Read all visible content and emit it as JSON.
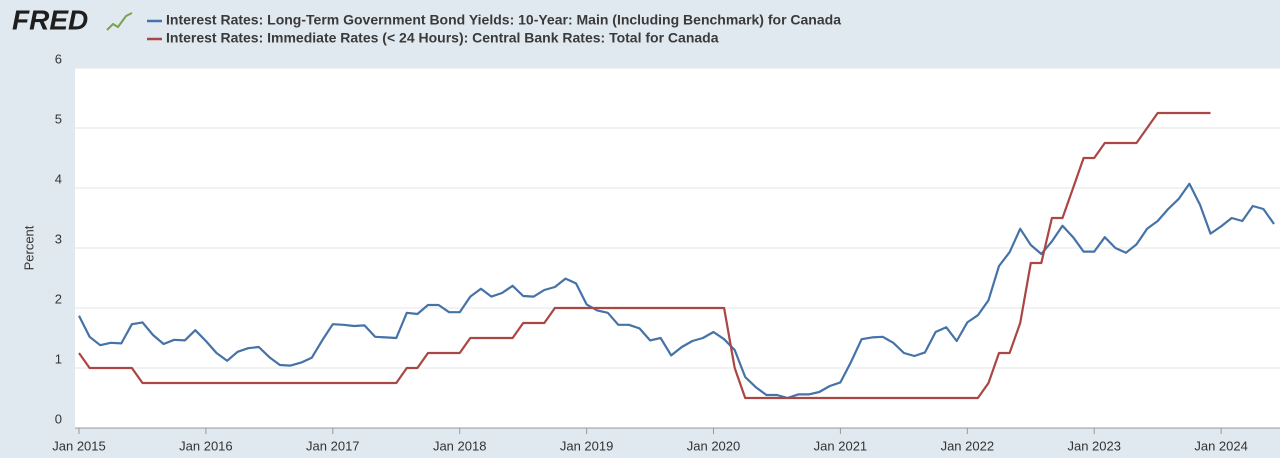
{
  "brand": "FRED",
  "chart_data": {
    "type": "line",
    "ylabel": "Percent",
    "x": [
      "2015-01",
      "2015-02",
      "2015-03",
      "2015-04",
      "2015-05",
      "2015-06",
      "2015-07",
      "2015-08",
      "2015-09",
      "2015-10",
      "2015-11",
      "2015-12",
      "2016-01",
      "2016-02",
      "2016-03",
      "2016-04",
      "2016-05",
      "2016-06",
      "2016-07",
      "2016-08",
      "2016-09",
      "2016-10",
      "2016-11",
      "2016-12",
      "2017-01",
      "2017-02",
      "2017-03",
      "2017-04",
      "2017-05",
      "2017-06",
      "2017-07",
      "2017-08",
      "2017-09",
      "2017-10",
      "2017-11",
      "2017-12",
      "2018-01",
      "2018-02",
      "2018-03",
      "2018-04",
      "2018-05",
      "2018-06",
      "2018-07",
      "2018-08",
      "2018-09",
      "2018-10",
      "2018-11",
      "2018-12",
      "2019-01",
      "2019-02",
      "2019-03",
      "2019-04",
      "2019-05",
      "2019-06",
      "2019-07",
      "2019-08",
      "2019-09",
      "2019-10",
      "2019-11",
      "2019-12",
      "2020-01",
      "2020-02",
      "2020-03",
      "2020-04",
      "2020-05",
      "2020-06",
      "2020-07",
      "2020-08",
      "2020-09",
      "2020-10",
      "2020-11",
      "2020-12",
      "2021-01",
      "2021-02",
      "2021-03",
      "2021-04",
      "2021-05",
      "2021-06",
      "2021-07",
      "2021-08",
      "2021-09",
      "2021-10",
      "2021-11",
      "2021-12",
      "2022-01",
      "2022-02",
      "2022-03",
      "2022-04",
      "2022-05",
      "2022-06",
      "2022-07",
      "2022-08",
      "2022-09",
      "2022-10",
      "2022-11",
      "2022-12",
      "2023-01",
      "2023-02",
      "2023-03",
      "2023-04",
      "2023-05",
      "2023-06",
      "2023-07",
      "2023-08",
      "2023-09",
      "2023-10",
      "2023-11",
      "2023-12",
      "2024-01",
      "2024-02",
      "2024-03",
      "2024-04",
      "2024-05",
      "2024-06"
    ],
    "series": [
      {
        "name": "Interest Rates: Long-Term Government Bond Yields: 10-Year: Main (Including Benchmark) for Canada",
        "color": "#4572a7",
        "values": [
          1.87,
          1.52,
          1.38,
          1.42,
          1.41,
          1.73,
          1.76,
          1.55,
          1.4,
          1.47,
          1.46,
          1.63,
          1.45,
          1.25,
          1.12,
          1.27,
          1.33,
          1.35,
          1.18,
          1.05,
          1.04,
          1.09,
          1.17,
          1.46,
          1.73,
          1.72,
          1.7,
          1.71,
          1.52,
          1.51,
          1.5,
          1.92,
          1.9,
          2.05,
          2.05,
          1.93,
          1.93,
          2.19,
          2.32,
          2.19,
          2.25,
          2.37,
          2.2,
          2.19,
          2.3,
          2.35,
          2.49,
          2.41,
          2.06,
          1.96,
          1.92,
          1.72,
          1.72,
          1.66,
          1.46,
          1.5,
          1.21,
          1.35,
          1.45,
          1.5,
          1.6,
          1.48,
          1.3,
          0.85,
          0.68,
          0.55,
          0.55,
          0.5,
          0.56,
          0.56,
          0.6,
          0.7,
          0.76,
          1.1,
          1.48,
          1.51,
          1.52,
          1.42,
          1.25,
          1.2,
          1.26,
          1.6,
          1.68,
          1.45,
          1.76,
          1.88,
          2.13,
          2.7,
          2.93,
          3.32,
          3.05,
          2.9,
          3.11,
          3.37,
          3.18,
          2.94,
          2.94,
          3.18,
          3.0,
          2.92,
          3.06,
          3.32,
          3.45,
          3.65,
          3.82,
          4.07,
          3.72,
          3.24,
          3.36,
          3.5,
          3.45,
          3.7,
          3.65,
          3.4
        ]
      },
      {
        "name": "Interest Rates: Immediate Rates (< 24 Hours): Central Bank Rates: Total for Canada",
        "color": "#aa4643",
        "values": [
          1.25,
          1.0,
          1.0,
          1.0,
          1.0,
          1.0,
          0.75,
          0.75,
          0.75,
          0.75,
          0.75,
          0.75,
          0.75,
          0.75,
          0.75,
          0.75,
          0.75,
          0.75,
          0.75,
          0.75,
          0.75,
          0.75,
          0.75,
          0.75,
          0.75,
          0.75,
          0.75,
          0.75,
          0.75,
          0.75,
          0.75,
          1.0,
          1.0,
          1.25,
          1.25,
          1.25,
          1.25,
          1.5,
          1.5,
          1.5,
          1.5,
          1.5,
          1.75,
          1.75,
          1.75,
          2.0,
          2.0,
          2.0,
          2.0,
          2.0,
          2.0,
          2.0,
          2.0,
          2.0,
          2.0,
          2.0,
          2.0,
          2.0,
          2.0,
          2.0,
          2.0,
          2.0,
          1.0,
          0.5,
          0.5,
          0.5,
          0.5,
          0.5,
          0.5,
          0.5,
          0.5,
          0.5,
          0.5,
          0.5,
          0.5,
          0.5,
          0.5,
          0.5,
          0.5,
          0.5,
          0.5,
          0.5,
          0.5,
          0.5,
          0.5,
          0.5,
          0.75,
          1.25,
          1.25,
          1.75,
          2.75,
          2.75,
          3.5,
          3.5,
          4.0,
          4.5,
          4.5,
          4.75,
          4.75,
          4.75,
          4.75,
          5.0,
          5.25,
          5.25,
          5.25,
          5.25,
          5.25,
          5.25,
          null,
          null,
          null,
          null,
          null,
          null
        ]
      }
    ],
    "xlim": [
      "2015-01",
      "2024-06"
    ],
    "xticks": [
      {
        "value": "2015-01",
        "label": "Jan 2015"
      },
      {
        "value": "2016-01",
        "label": "Jan 2016"
      },
      {
        "value": "2017-01",
        "label": "Jan 2017"
      },
      {
        "value": "2018-01",
        "label": "Jan 2018"
      },
      {
        "value": "2019-01",
        "label": "Jan 2019"
      },
      {
        "value": "2020-01",
        "label": "Jan 2020"
      },
      {
        "value": "2021-01",
        "label": "Jan 2021"
      },
      {
        "value": "2022-01",
        "label": "Jan 2022"
      },
      {
        "value": "2023-01",
        "label": "Jan 2023"
      },
      {
        "value": "2024-01",
        "label": "Jan 2024"
      }
    ],
    "ylim": [
      0,
      6
    ],
    "yticks": [
      0,
      1,
      2,
      3,
      4,
      5,
      6
    ],
    "grid": true
  }
}
